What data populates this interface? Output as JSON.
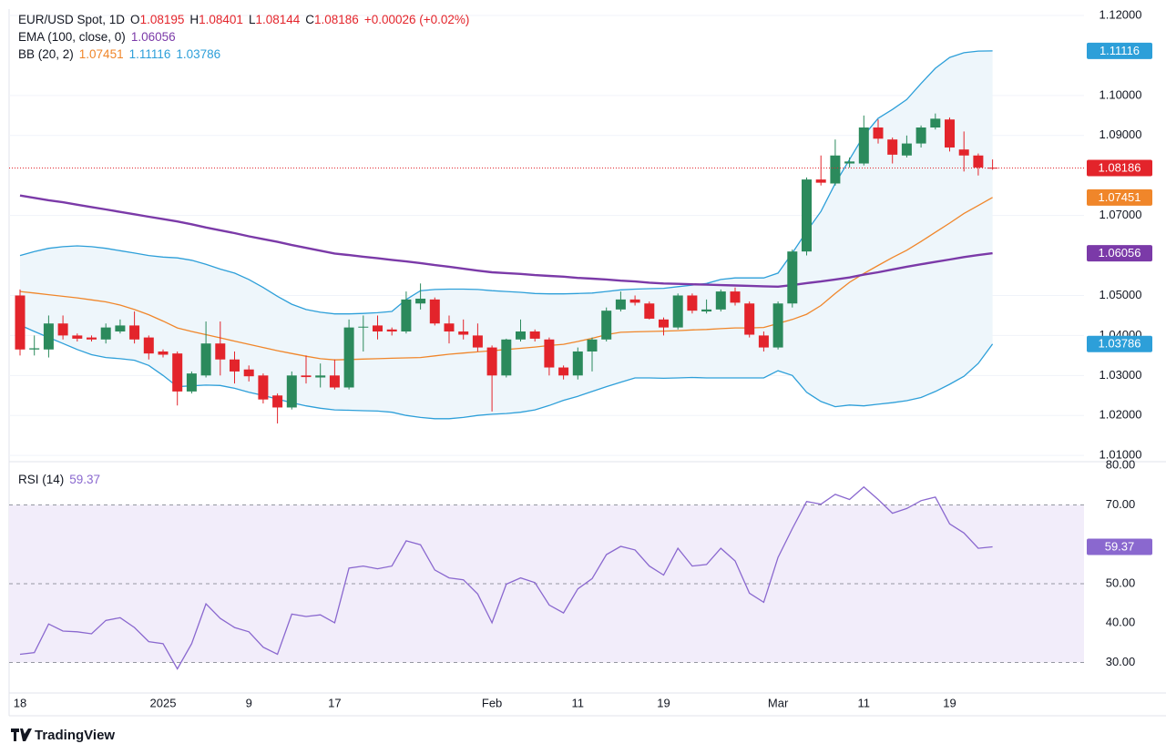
{
  "chart_data": [
    {
      "type": "candlestick",
      "title": "EUR/USD Spot, 1D",
      "ohlc_labels": [
        "O",
        "H",
        "L",
        "C"
      ],
      "change": "+0.00026 (+0.02%)",
      "categories": [
        "18",
        null,
        null,
        null,
        null,
        null,
        null,
        null,
        null,
        null,
        "2025",
        null,
        null,
        null,
        null,
        null,
        "9",
        null,
        null,
        null,
        null,
        null,
        "17",
        null,
        null,
        null,
        null,
        null,
        null,
        null,
        null,
        null,
        null,
        "Feb",
        null,
        null,
        null,
        null,
        null,
        "11",
        null,
        null,
        null,
        null,
        null,
        "19",
        null,
        null,
        null,
        null,
        null,
        null,
        null,
        "Mar",
        null,
        null,
        null,
        null,
        null,
        "11",
        null,
        null,
        null,
        null,
        null,
        "19",
        null,
        null,
        null
      ],
      "open": [
        1.05,
        1.0365,
        1.0365,
        1.043,
        1.04,
        1.0395,
        1.039,
        1.041,
        1.0425,
        1.0395,
        1.036,
        1.0355,
        1.026,
        1.03,
        1.038,
        1.034,
        1.0315,
        1.03,
        1.025,
        1.022,
        1.03,
        1.0295,
        1.03,
        1.027,
        1.042,
        1.0425,
        1.0415,
        1.041,
        1.048,
        1.049,
        1.043,
        1.041,
        1.04,
        1.037,
        1.03,
        1.039,
        1.041,
        1.039,
        1.032,
        1.03,
        1.036,
        1.039,
        1.0465,
        1.049,
        1.048,
        1.044,
        1.042,
        1.05,
        1.046,
        1.0465,
        1.051,
        1.048,
        1.04,
        1.037,
        1.048,
        1.061,
        1.079,
        1.078,
        1.083,
        1.083,
        1.092,
        1.089,
        1.085,
        1.088,
        1.092,
        1.094,
        1.0865,
        1.085,
        1.08195
      ],
      "high": [
        1.0515,
        1.04,
        1.045,
        1.045,
        1.0405,
        1.04,
        1.043,
        1.044,
        1.046,
        1.04,
        1.0365,
        1.036,
        1.031,
        1.0435,
        1.0435,
        1.036,
        1.0325,
        1.0305,
        1.0255,
        1.031,
        1.035,
        1.033,
        1.034,
        1.044,
        1.045,
        1.045,
        1.042,
        1.051,
        1.053,
        1.0495,
        1.045,
        1.044,
        1.043,
        1.0375,
        1.0392,
        1.044,
        1.0415,
        1.0395,
        1.0325,
        1.037,
        1.0395,
        1.047,
        1.051,
        1.05,
        1.0485,
        1.0445,
        1.0505,
        1.0505,
        1.049,
        1.0515,
        1.052,
        1.0485,
        1.041,
        1.0485,
        1.0615,
        1.0795,
        1.085,
        1.089,
        1.0845,
        1.095,
        1.094,
        1.0895,
        1.09,
        1.0925,
        1.0955,
        1.0945,
        1.091,
        1.0855,
        1.08401
      ],
      "low": [
        1.035,
        1.035,
        1.0345,
        1.039,
        1.0385,
        1.0385,
        1.038,
        1.0405,
        1.038,
        1.034,
        1.0345,
        1.0225,
        1.0255,
        1.0295,
        1.03,
        1.028,
        1.0285,
        1.023,
        1.018,
        1.0215,
        1.028,
        1.027,
        1.0265,
        1.0265,
        1.036,
        1.039,
        1.04,
        1.0405,
        1.0465,
        1.0425,
        1.038,
        1.039,
        1.036,
        1.021,
        1.0295,
        1.0385,
        1.0385,
        1.03,
        1.029,
        1.029,
        1.031,
        1.0385,
        1.046,
        1.0475,
        1.044,
        1.04,
        1.0415,
        1.0455,
        1.0455,
        1.046,
        1.0475,
        1.0395,
        1.036,
        1.0365,
        1.047,
        1.06,
        1.0775,
        1.0775,
        1.082,
        1.0825,
        1.088,
        1.083,
        1.0845,
        1.087,
        1.0915,
        1.086,
        1.081,
        1.08,
        1.08144
      ],
      "close": [
        1.0365,
        1.0368,
        1.043,
        1.04,
        1.0392,
        1.039,
        1.042,
        1.0425,
        1.039,
        1.0355,
        1.0352,
        1.026,
        1.0305,
        1.038,
        1.034,
        1.031,
        1.0298,
        1.024,
        1.022,
        1.03,
        1.0296,
        1.03,
        1.027,
        1.042,
        1.0422,
        1.041,
        1.041,
        1.049,
        1.0492,
        1.043,
        1.041,
        1.0402,
        1.037,
        1.03,
        1.039,
        1.041,
        1.0392,
        1.032,
        1.03,
        1.036,
        1.039,
        1.0462,
        1.049,
        1.0482,
        1.0442,
        1.042,
        1.05,
        1.0462,
        1.0465,
        1.051,
        1.0482,
        1.0402,
        1.037,
        1.048,
        1.061,
        1.079,
        1.0782,
        1.085,
        1.0835,
        1.092,
        1.0892,
        1.0852,
        1.088,
        1.092,
        1.0942,
        1.087,
        1.085,
        1.082,
        1.08186
      ],
      "up_color": "#2b8a5c",
      "down_color": "#e3242b",
      "ylim": [
        1.0089,
        1.1216
      ],
      "yticks": [
        {
          "value": 1.12,
          "label": "1.12000"
        },
        {
          "value": 1.1,
          "label": "1.10000"
        },
        {
          "value": 1.09,
          "label": "1.09000"
        },
        {
          "value": 1.07,
          "label": "1.07000"
        },
        {
          "value": 1.05,
          "label": "1.05000"
        },
        {
          "value": 1.04,
          "label": "1.04000"
        },
        {
          "value": 1.03,
          "label": "1.03000"
        },
        {
          "value": 1.02,
          "label": "1.02000"
        },
        {
          "value": 1.01,
          "label": "1.01000"
        }
      ],
      "grid": true,
      "series": [
        {
          "name": "EMA (100, close, 0)",
          "color": "#7b3aa8",
          "values": [
            1.075,
            1.0744,
            1.0738,
            1.0733,
            1.0727,
            1.0721,
            1.0715,
            1.0709,
            1.0703,
            1.0697,
            1.0691,
            1.0685,
            1.0678,
            1.067,
            1.0663,
            1.0656,
            1.0648,
            1.0641,
            1.0634,
            1.0626,
            1.0619,
            1.0612,
            1.0605,
            1.0601,
            1.0597,
            1.0593,
            1.0589,
            1.0585,
            1.0581,
            1.0576,
            1.0572,
            1.0567,
            1.0562,
            1.0558,
            1.0556,
            1.0554,
            1.0551,
            1.0549,
            1.0547,
            1.0544,
            1.0542,
            1.054,
            1.0537,
            1.0535,
            1.0532,
            1.053,
            1.0529,
            1.0528,
            1.0527,
            1.0526,
            1.0525,
            1.0524,
            1.0523,
            1.0522,
            1.0526,
            1.0531,
            1.0535,
            1.054,
            1.0545,
            1.0552,
            1.0558,
            1.0565,
            1.0572,
            1.0578,
            1.0584,
            1.059,
            1.0596,
            1.0601,
            1.06056
          ]
        }
      ],
      "bands": {
        "name": "BB (20, 2)",
        "fill": "#eef6fb",
        "basis": {
          "color": "#f0862a",
          "values": [
            1.051,
            1.0506,
            1.0502,
            1.0498,
            1.0494,
            1.0489,
            1.0484,
            1.0476,
            1.0465,
            1.0452,
            1.0436,
            1.0419,
            1.041,
            1.0402,
            1.0394,
            1.0386,
            1.0378,
            1.037,
            1.0362,
            1.0355,
            1.0348,
            1.0342,
            1.0339,
            1.034,
            1.0341,
            1.0342,
            1.0343,
            1.0344,
            1.0345,
            1.0349,
            1.0353,
            1.0356,
            1.0359,
            1.0362,
            1.0365,
            1.0368,
            1.0371,
            1.0375,
            1.0378,
            1.0385,
            1.0393,
            1.0402,
            1.0408,
            1.0409,
            1.041,
            1.0411,
            1.0412,
            1.0414,
            1.0415,
            1.0417,
            1.0419,
            1.0419,
            1.042,
            1.043,
            1.044,
            1.0453,
            1.0475,
            1.0505,
            1.0533,
            1.0555,
            1.0575,
            1.0595,
            1.0613,
            1.0635,
            1.0658,
            1.0681,
            1.0705,
            1.0725,
            1.07451
          ]
        },
        "upper": {
          "color": "#2d9fd9",
          "values": [
            1.06,
            1.061,
            1.0618,
            1.0622,
            1.0624,
            1.0622,
            1.0618,
            1.0612,
            1.0606,
            1.06,
            1.0596,
            1.0594,
            1.0588,
            1.0578,
            1.0566,
            1.0556,
            1.054,
            1.052,
            1.0498,
            1.0478,
            1.0465,
            1.0458,
            1.0454,
            1.0454,
            1.0455,
            1.0457,
            1.046,
            1.049,
            1.0512,
            1.0515,
            1.0516,
            1.0516,
            1.0515,
            1.0512,
            1.051,
            1.0508,
            1.0505,
            1.0504,
            1.0504,
            1.0505,
            1.0506,
            1.051,
            1.0514,
            1.0516,
            1.0517,
            1.0518,
            1.0522,
            1.0526,
            1.053,
            1.054,
            1.0544,
            1.0544,
            1.0544,
            1.0556,
            1.0606,
            1.066,
            1.071,
            1.078,
            1.084,
            1.09,
            1.0943,
            1.0965,
            1.099,
            1.103,
            1.1068,
            1.1095,
            1.1107,
            1.1111,
            1.11116
          ]
        },
        "lower": {
          "color": "#2d9fd9",
          "values": [
            1.0426,
            1.041,
            1.0395,
            1.038,
            1.0365,
            1.0352,
            1.0345,
            1.0342,
            1.0338,
            1.0325,
            1.03,
            1.0272,
            1.0274,
            1.0276,
            1.0275,
            1.0268,
            1.0258,
            1.025,
            1.0241,
            1.0232,
            1.0224,
            1.0218,
            1.0214,
            1.0213,
            1.0212,
            1.0211,
            1.0208,
            1.02,
            1.0195,
            1.0192,
            1.0192,
            1.0195,
            1.02,
            1.0203,
            1.0205,
            1.0208,
            1.0214,
            1.0225,
            1.0238,
            1.0248,
            1.026,
            1.0272,
            1.0283,
            1.0294,
            1.0294,
            1.0293,
            1.0294,
            1.0295,
            1.0294,
            1.0294,
            1.0294,
            1.0294,
            1.0294,
            1.0312,
            1.03,
            1.0258,
            1.0235,
            1.0222,
            1.0226,
            1.0224,
            1.0228,
            1.0232,
            1.0237,
            1.0245,
            1.026,
            1.0278,
            1.0298,
            1.033,
            1.03786
          ]
        }
      }
    },
    {
      "type": "line",
      "title": "RSI (14)",
      "color": "#8a68cf",
      "values": [
        32.1,
        32.5,
        39.8,
        38.0,
        37.8,
        37.3,
        40.7,
        41.4,
        38.9,
        35.3,
        34.8,
        28.4,
        34.8,
        44.9,
        41.2,
        38.9,
        37.8,
        33.9,
        32.1,
        42.3,
        41.7,
        42.1,
        40.1,
        54.0,
        54.5,
        53.8,
        54.5,
        60.9,
        59.9,
        53.5,
        51.5,
        51.0,
        47.4,
        40.1,
        49.9,
        51.5,
        50.3,
        44.6,
        42.6,
        48.7,
        51.3,
        57.4,
        59.5,
        58.6,
        54.5,
        52.2,
        59.0,
        54.5,
        54.9,
        59.0,
        55.8,
        47.6,
        45.3,
        56.7,
        64.0,
        70.9,
        70.2,
        72.7,
        71.4,
        74.6,
        71.4,
        67.9,
        69.1,
        71.1,
        72.0,
        65.2,
        62.9,
        59.0,
        59.37
      ],
      "ylim": [
        22.5,
        80.3
      ],
      "yticks": [
        {
          "value": 80,
          "label": "80.00"
        },
        {
          "value": 70,
          "label": "70.00"
        },
        {
          "value": 50,
          "label": "50.00"
        },
        {
          "value": 40,
          "label": "40.00"
        },
        {
          "value": 30,
          "label": "30.00"
        }
      ],
      "levels": [
        30,
        50,
        70
      ],
      "band_color": "#f2edfa"
    }
  ],
  "brand": "TradingView"
}
